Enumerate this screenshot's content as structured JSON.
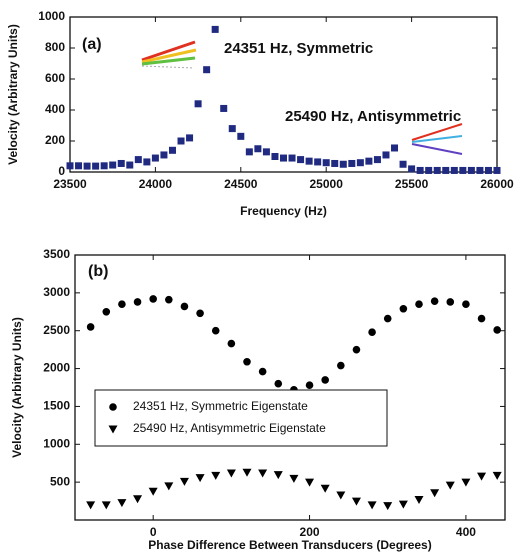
{
  "chart_data": [
    {
      "type": "scatter",
      "label": "(a)",
      "x_label": "Frequency (Hz)",
      "y_label": "Velocity (Arbitrary Units)",
      "annotations": [
        "24351 Hz, Symmetric",
        "25490 Hz, Antisymmetric"
      ],
      "xlim": [
        23500,
        26000
      ],
      "xticks": [
        23500,
        24000,
        24500,
        25000,
        25500,
        26000
      ],
      "ylim": [
        0,
        1000
      ],
      "yticks": [
        0,
        200,
        400,
        600,
        800,
        1000
      ],
      "x": [
        23500,
        23550,
        23600,
        23650,
        23700,
        23750,
        23800,
        23850,
        23900,
        23950,
        24000,
        24050,
        24100,
        24150,
        24200,
        24250,
        24300,
        24350,
        24400,
        24450,
        24500,
        24550,
        24600,
        24650,
        24700,
        24750,
        24800,
        24850,
        24900,
        24950,
        25000,
        25050,
        25100,
        25150,
        25200,
        25250,
        25300,
        25350,
        25400,
        25450,
        25500,
        25550,
        25600,
        25650,
        25700,
        25750,
        25800,
        25850,
        25900,
        25950,
        26000
      ],
      "series": [
        {
          "color": "#1f2a80",
          "marker": "square",
          "values": [
            40,
            40,
            38,
            38,
            40,
            45,
            55,
            45,
            80,
            65,
            90,
            110,
            140,
            200,
            220,
            440,
            660,
            920,
            410,
            280,
            230,
            130,
            150,
            130,
            100,
            90,
            90,
            80,
            70,
            65,
            60,
            55,
            50,
            55,
            60,
            70,
            80,
            110,
            155,
            50,
            20,
            10,
            10,
            10,
            10,
            10,
            10,
            10,
            10,
            10,
            10
          ]
        }
      ]
    },
    {
      "type": "scatter",
      "label": "(b)",
      "x_label": "Phase Difference Between Transducers (Degrees)",
      "y_label": "Velocity (Arbitrary Units)",
      "xlim": [
        -100,
        450
      ],
      "xticks": [
        0,
        200,
        400
      ],
      "ylim": [
        0,
        3500
      ],
      "yticks": [
        500,
        1000,
        1500,
        2000,
        2500,
        3000,
        3500
      ],
      "legend": "lower-left",
      "x": [
        -80,
        -60,
        -40,
        -20,
        0,
        20,
        40,
        60,
        80,
        100,
        120,
        140,
        160,
        180,
        200,
        220,
        240,
        260,
        280,
        300,
        320,
        340,
        360,
        380,
        400,
        420,
        440
      ],
      "series": [
        {
          "name": "24351 Hz, Symmetric Eigenstate",
          "color": "#000000",
          "marker": "circle",
          "values": [
            2550,
            2750,
            2850,
            2880,
            2920,
            2910,
            2820,
            2730,
            2500,
            2330,
            2090,
            1960,
            1800,
            1720,
            1780,
            1850,
            2040,
            2250,
            2480,
            2660,
            2790,
            2850,
            2890,
            2880,
            2850,
            2660,
            2510
          ]
        },
        {
          "name": "25490 Hz, Antisymmetric Eigenstate",
          "color": "#000000",
          "marker": "triangle-down",
          "values": [
            200,
            200,
            230,
            280,
            380,
            450,
            510,
            560,
            590,
            620,
            630,
            620,
            600,
            550,
            500,
            420,
            330,
            250,
            200,
            190,
            210,
            270,
            360,
            460,
            500,
            580,
            590
          ]
        }
      ]
    }
  ]
}
